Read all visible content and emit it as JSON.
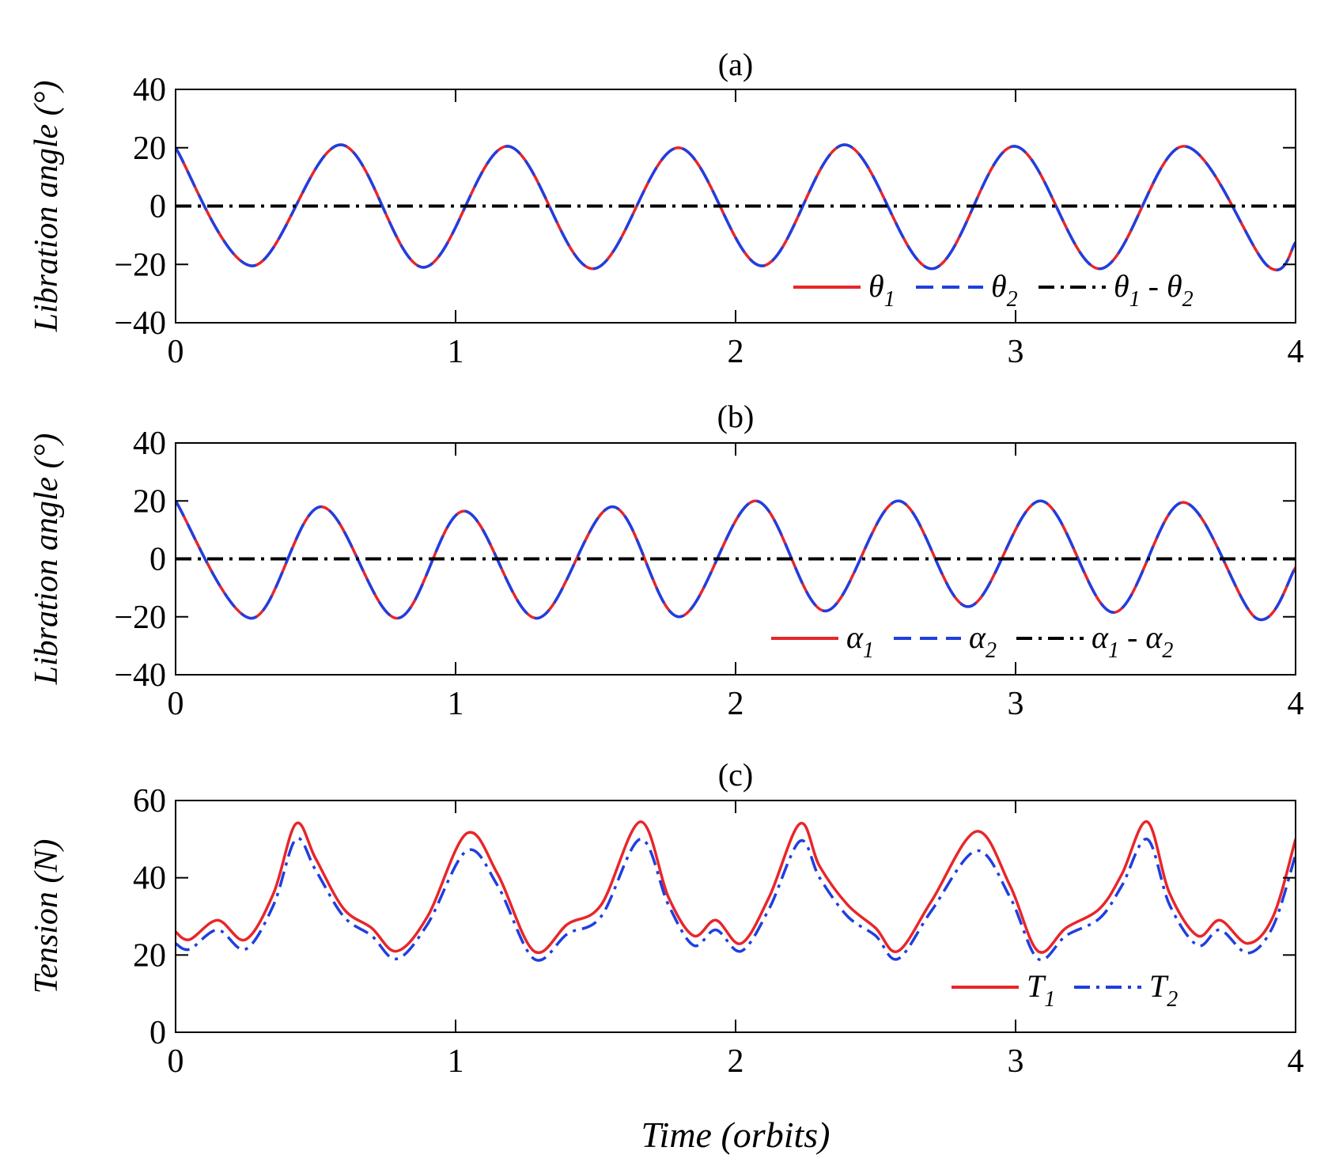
{
  "chart_data": [
    {
      "type": "line",
      "title": "(a)",
      "xlabel": "",
      "ylabel": "Libration angle (°)",
      "xlim": [
        0,
        4
      ],
      "ylim": [
        -40,
        40
      ],
      "xticks": [
        0,
        1,
        2,
        3,
        4
      ],
      "yticks": [
        -40,
        -20,
        0,
        20,
        40
      ],
      "xtick_labels": [
        "0",
        "1",
        "2",
        "3",
        "4"
      ],
      "ytick_labels": [
        "−40",
        "−20",
        "0",
        "20",
        "40"
      ],
      "grid": false,
      "legend_position": "bottom-right",
      "legend_orientation": "horizontal",
      "series": [
        {
          "name": "θ1",
          "name_base": "θ",
          "name_sub": "1",
          "color": "#e8262a",
          "style": "solid",
          "x": [
            0,
            0.275,
            0.59,
            0.885,
            1.185,
            1.49,
            1.795,
            2.095,
            2.39,
            2.7,
            2.995,
            3.3,
            3.6,
            3.9,
            4.0
          ],
          "y": [
            20,
            -20.5,
            21,
            -21,
            20.5,
            -21.5,
            20,
            -20.5,
            21,
            -21.5,
            20.5,
            -21.5,
            20.5,
            -20.5,
            -12.5
          ]
        },
        {
          "name": "θ2",
          "name_base": "θ",
          "name_sub": "2",
          "color": "#1f3fe0",
          "style": "dashed",
          "x": [
            0,
            0.275,
            0.59,
            0.885,
            1.185,
            1.49,
            1.795,
            2.095,
            2.39,
            2.7,
            2.995,
            3.3,
            3.6,
            3.9,
            4.0
          ],
          "y": [
            20,
            -20.5,
            21,
            -21,
            20.5,
            -21.5,
            20,
            -20.5,
            21,
            -21.5,
            20.5,
            -21.5,
            20.5,
            -20.5,
            -12.5
          ]
        },
        {
          "name": "θ1 - θ2",
          "name_base": "θ",
          "name_sub": "1",
          "name_mid": " - ",
          "name_base2": "θ",
          "name_sub2": "2",
          "color": "#000000",
          "style": "dashdot",
          "x": [
            0,
            4
          ],
          "y": [
            0,
            0
          ]
        }
      ]
    },
    {
      "type": "line",
      "title": "(b)",
      "xlabel": "",
      "ylabel": "Libration angle (°)",
      "xlim": [
        0,
        4
      ],
      "ylim": [
        -40,
        40
      ],
      "xticks": [
        0,
        1,
        2,
        3,
        4
      ],
      "yticks": [
        -40,
        -20,
        0,
        20,
        40
      ],
      "xtick_labels": [
        "0",
        "1",
        "2",
        "3",
        "4"
      ],
      "ytick_labels": [
        "−40",
        "−20",
        "0",
        "20",
        "40"
      ],
      "grid": false,
      "legend_position": "bottom-right",
      "legend_orientation": "horizontal",
      "series": [
        {
          "name": "α1",
          "name_base": "α",
          "name_sub": "1",
          "color": "#e8262a",
          "style": "solid",
          "x": [
            0,
            0.27,
            0.52,
            0.79,
            1.03,
            1.29,
            1.56,
            1.8,
            2.07,
            2.32,
            2.58,
            2.83,
            3.09,
            3.35,
            3.6,
            3.86,
            4.0
          ],
          "y": [
            20,
            -20.5,
            18,
            -20.5,
            16.5,
            -20.5,
            18,
            -20,
            20,
            -18,
            20,
            -16.5,
            20,
            -18.5,
            19.5,
            -20.5,
            -3
          ]
        },
        {
          "name": "α2",
          "name_base": "α",
          "name_sub": "2",
          "color": "#1f3fe0",
          "style": "dashed",
          "x": [
            0,
            0.27,
            0.52,
            0.79,
            1.03,
            1.29,
            1.56,
            1.8,
            2.07,
            2.32,
            2.58,
            2.83,
            3.09,
            3.35,
            3.6,
            3.86,
            4.0
          ],
          "y": [
            20,
            -20.5,
            18,
            -20.5,
            16.5,
            -20.5,
            18,
            -20,
            20,
            -18,
            20,
            -16.5,
            20,
            -18.5,
            19.5,
            -20.5,
            -3
          ]
        },
        {
          "name": "α1 - α2",
          "name_base": "α",
          "name_sub": "1",
          "name_mid": " - ",
          "name_base2": "α",
          "name_sub2": "2",
          "color": "#000000",
          "style": "dashdot",
          "x": [
            0,
            4
          ],
          "y": [
            0,
            0
          ]
        }
      ]
    },
    {
      "type": "line",
      "title": "(c)",
      "xlabel": "Time (orbits)",
      "ylabel": "Tension (N)",
      "xlim": [
        0,
        4
      ],
      "ylim": [
        0,
        60
      ],
      "xticks": [
        0,
        1,
        2,
        3,
        4
      ],
      "yticks": [
        0,
        20,
        40,
        60
      ],
      "xtick_labels": [
        "0",
        "1",
        "2",
        "3",
        "4"
      ],
      "ytick_labels": [
        "0",
        "20",
        "40",
        "60"
      ],
      "grid": false,
      "legend_position": "bottom-right",
      "legend_orientation": "horizontal",
      "series": [
        {
          "name": "T1",
          "name_base": "T",
          "name_sub": "1",
          "color": "#e8262a",
          "style": "solid",
          "x": [
            0,
            0.05,
            0.15,
            0.25,
            0.35,
            0.43,
            0.5,
            0.6,
            0.7,
            0.79,
            0.9,
            1.04,
            1.15,
            1.28,
            1.4,
            1.52,
            1.66,
            1.76,
            1.85,
            1.93,
            2.02,
            2.12,
            2.23,
            2.3,
            2.4,
            2.5,
            2.58,
            2.7,
            2.86,
            2.98,
            3.08,
            3.18,
            3.3,
            3.38,
            3.47,
            3.55,
            3.65,
            3.73,
            3.83,
            3.92,
            4.0
          ],
          "y": [
            26,
            24,
            29,
            24,
            36,
            54,
            45,
            32,
            27,
            21,
            30,
            51.5,
            41,
            21,
            28,
            33,
            54.5,
            35,
            25,
            29,
            23,
            35,
            54,
            43,
            33,
            27,
            21,
            34,
            52,
            38,
            21,
            27,
            32,
            41,
            54.5,
            36,
            25,
            29,
            23,
            30,
            50
          ]
        },
        {
          "name": "T2",
          "name_base": "T",
          "name_sub": "2",
          "color": "#1f3fe0",
          "style": "dashdot",
          "x": [
            0,
            0.05,
            0.15,
            0.25,
            0.35,
            0.43,
            0.5,
            0.6,
            0.7,
            0.79,
            0.9,
            1.04,
            1.15,
            1.28,
            1.4,
            1.52,
            1.66,
            1.76,
            1.85,
            1.93,
            2.02,
            2.12,
            2.23,
            2.3,
            2.4,
            2.5,
            2.58,
            2.7,
            2.86,
            2.98,
            3.08,
            3.18,
            3.3,
            3.38,
            3.47,
            3.55,
            3.65,
            3.73,
            3.83,
            3.92,
            4.0
          ],
          "y": [
            23,
            21.5,
            26.5,
            21.5,
            33,
            50,
            42,
            30,
            25,
            19,
            28,
            47,
            38,
            19,
            25.5,
            30,
            50,
            33,
            22.5,
            26.5,
            21,
            32,
            49.5,
            40,
            30,
            25,
            19,
            31.5,
            47,
            35,
            19,
            25,
            29.5,
            38,
            50,
            33,
            22.5,
            26.5,
            20.5,
            27.5,
            46
          ]
        }
      ]
    }
  ]
}
